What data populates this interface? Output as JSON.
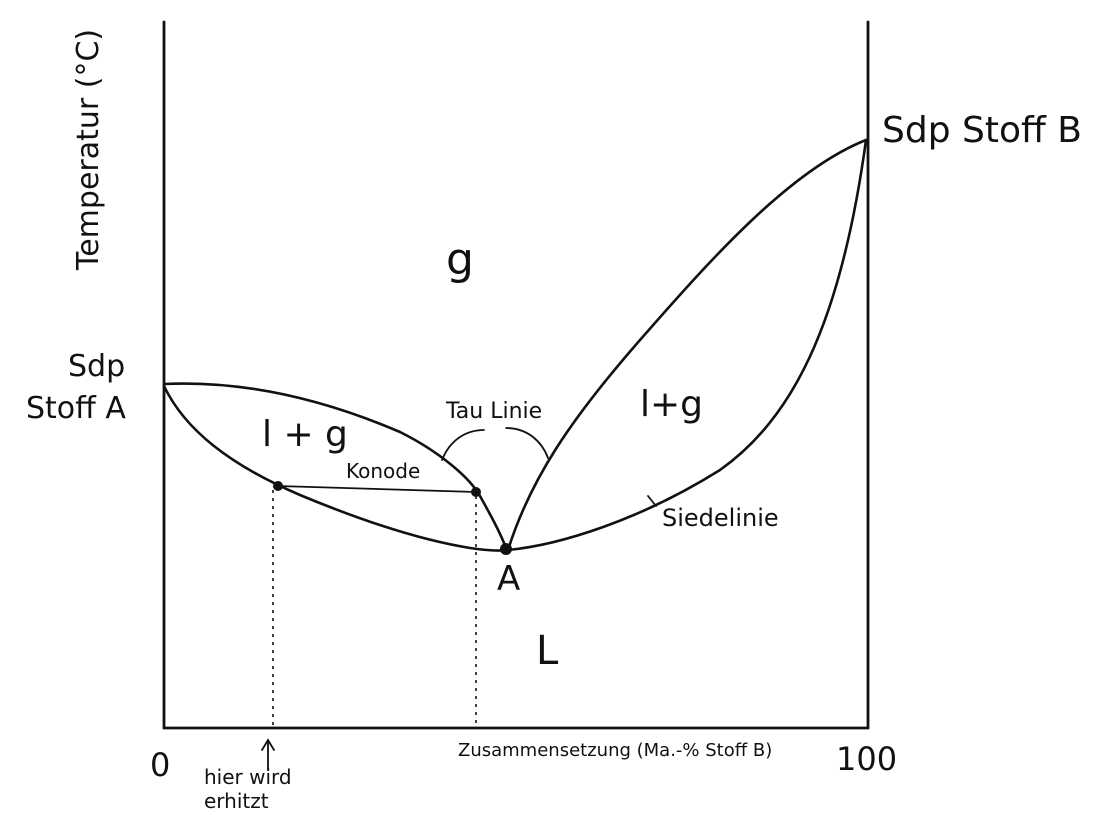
{
  "diagram": {
    "y_axis_label": "Temperatur (°C)",
    "x_axis_label": "Zusammensetzung (Ma.-% Stoff B)",
    "x_tick_start": "0",
    "x_tick_end": "100",
    "boiling_point_a_line1": "Sdp",
    "boiling_point_a_line2": "Stoff A",
    "boiling_point_b": "Sdp Stoff B",
    "region_gas": "g",
    "region_liquid": "L",
    "region_two_phase_left": "l + g",
    "region_two_phase_right": "l+g",
    "label_dew_line": "Tau Linie",
    "label_boiling_line": "Siedelinie",
    "label_tie_line": "Konode",
    "label_azeotrope_point": "A",
    "heating_note_line1": "hier wird",
    "heating_note_line2": "erhitzt"
  }
}
